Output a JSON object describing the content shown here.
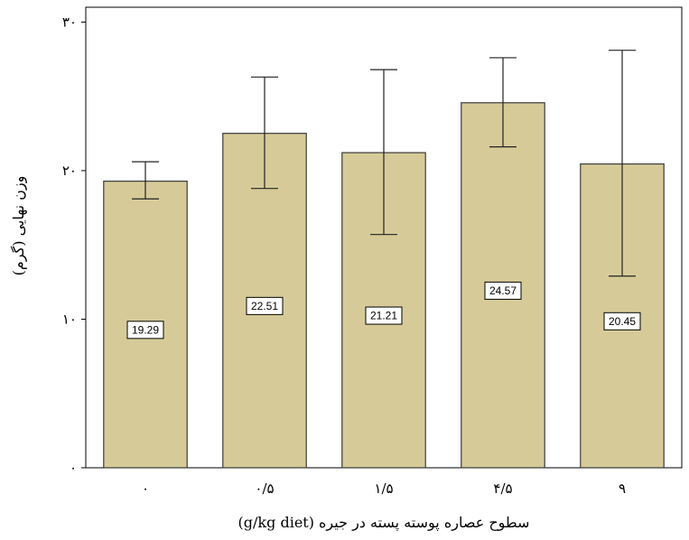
{
  "chart_data": {
    "type": "bar",
    "categories": [
      "۰",
      "۰/۵",
      "۱/۵",
      "۴/۵",
      "۹"
    ],
    "values": [
      19.29,
      22.51,
      21.21,
      24.57,
      20.45
    ],
    "value_labels": [
      "19.29",
      "22.51",
      "21.21",
      "24.57",
      "20.45"
    ],
    "error_bars": {
      "low": [
        18.1,
        18.8,
        15.7,
        21.6,
        12.9
      ],
      "high": [
        20.6,
        26.3,
        26.8,
        27.6,
        28.1
      ]
    },
    "ylim": [
      0,
      31
    ],
    "yticks": [
      0,
      10,
      20,
      30
    ],
    "ytick_labels": [
      "۰",
      "۱۰",
      "۲۰",
      "۳۰"
    ],
    "xlabel": "سطوح عصاره پوسته پسته در جیره (g/kg diet)",
    "ylabel": "وزن نهایی (گرم)",
    "grid": false,
    "colors": {
      "bar_fill": "#d6cb98",
      "bar_stroke": "#3a3a3a",
      "axis": "#000000"
    }
  }
}
